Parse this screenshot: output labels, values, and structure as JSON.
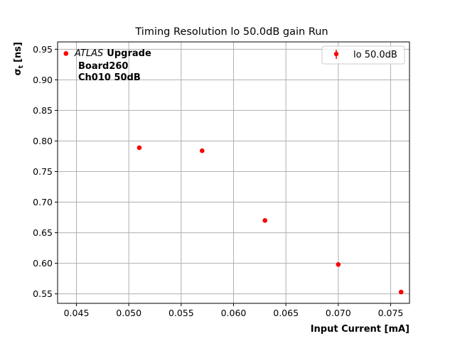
{
  "chart_data": {
    "type": "scatter",
    "title": "Timing Resolution lo 50.0dB gain Run",
    "xlabel": "Input Current [mA]",
    "ylabel_main": "σ",
    "ylabel_sub": "t",
    "ylabel_unit": "[ns]",
    "xlim": [
      0.0432,
      0.0768
    ],
    "ylim": [
      0.5345,
      0.962
    ],
    "x_ticks": [
      0.045,
      0.05,
      0.055,
      0.06,
      0.065,
      0.07,
      0.075
    ],
    "x_tick_labels": [
      "0.045",
      "0.050",
      "0.055",
      "0.060",
      "0.065",
      "0.070",
      "0.075"
    ],
    "y_ticks": [
      0.55,
      0.6,
      0.65,
      0.7,
      0.75,
      0.8,
      0.85,
      0.9,
      0.95
    ],
    "y_tick_labels": [
      "0.55",
      "0.60",
      "0.65",
      "0.70",
      "0.75",
      "0.80",
      "0.85",
      "0.90",
      "0.95"
    ],
    "grid": true,
    "legend_position": "top-right",
    "series": [
      {
        "name": "lo 50.0dB",
        "color": "#ff0000",
        "x": [
          0.044,
          0.051,
          0.057,
          0.063,
          0.07,
          0.076
        ],
        "y": [
          0.943,
          0.789,
          0.784,
          0.67,
          0.598,
          0.553
        ]
      }
    ],
    "annotation": {
      "atlas_italic": "ATLAS",
      "atlas_bold": "Upgrade",
      "line2": "Board260",
      "line3": "Ch010 50dB"
    }
  }
}
